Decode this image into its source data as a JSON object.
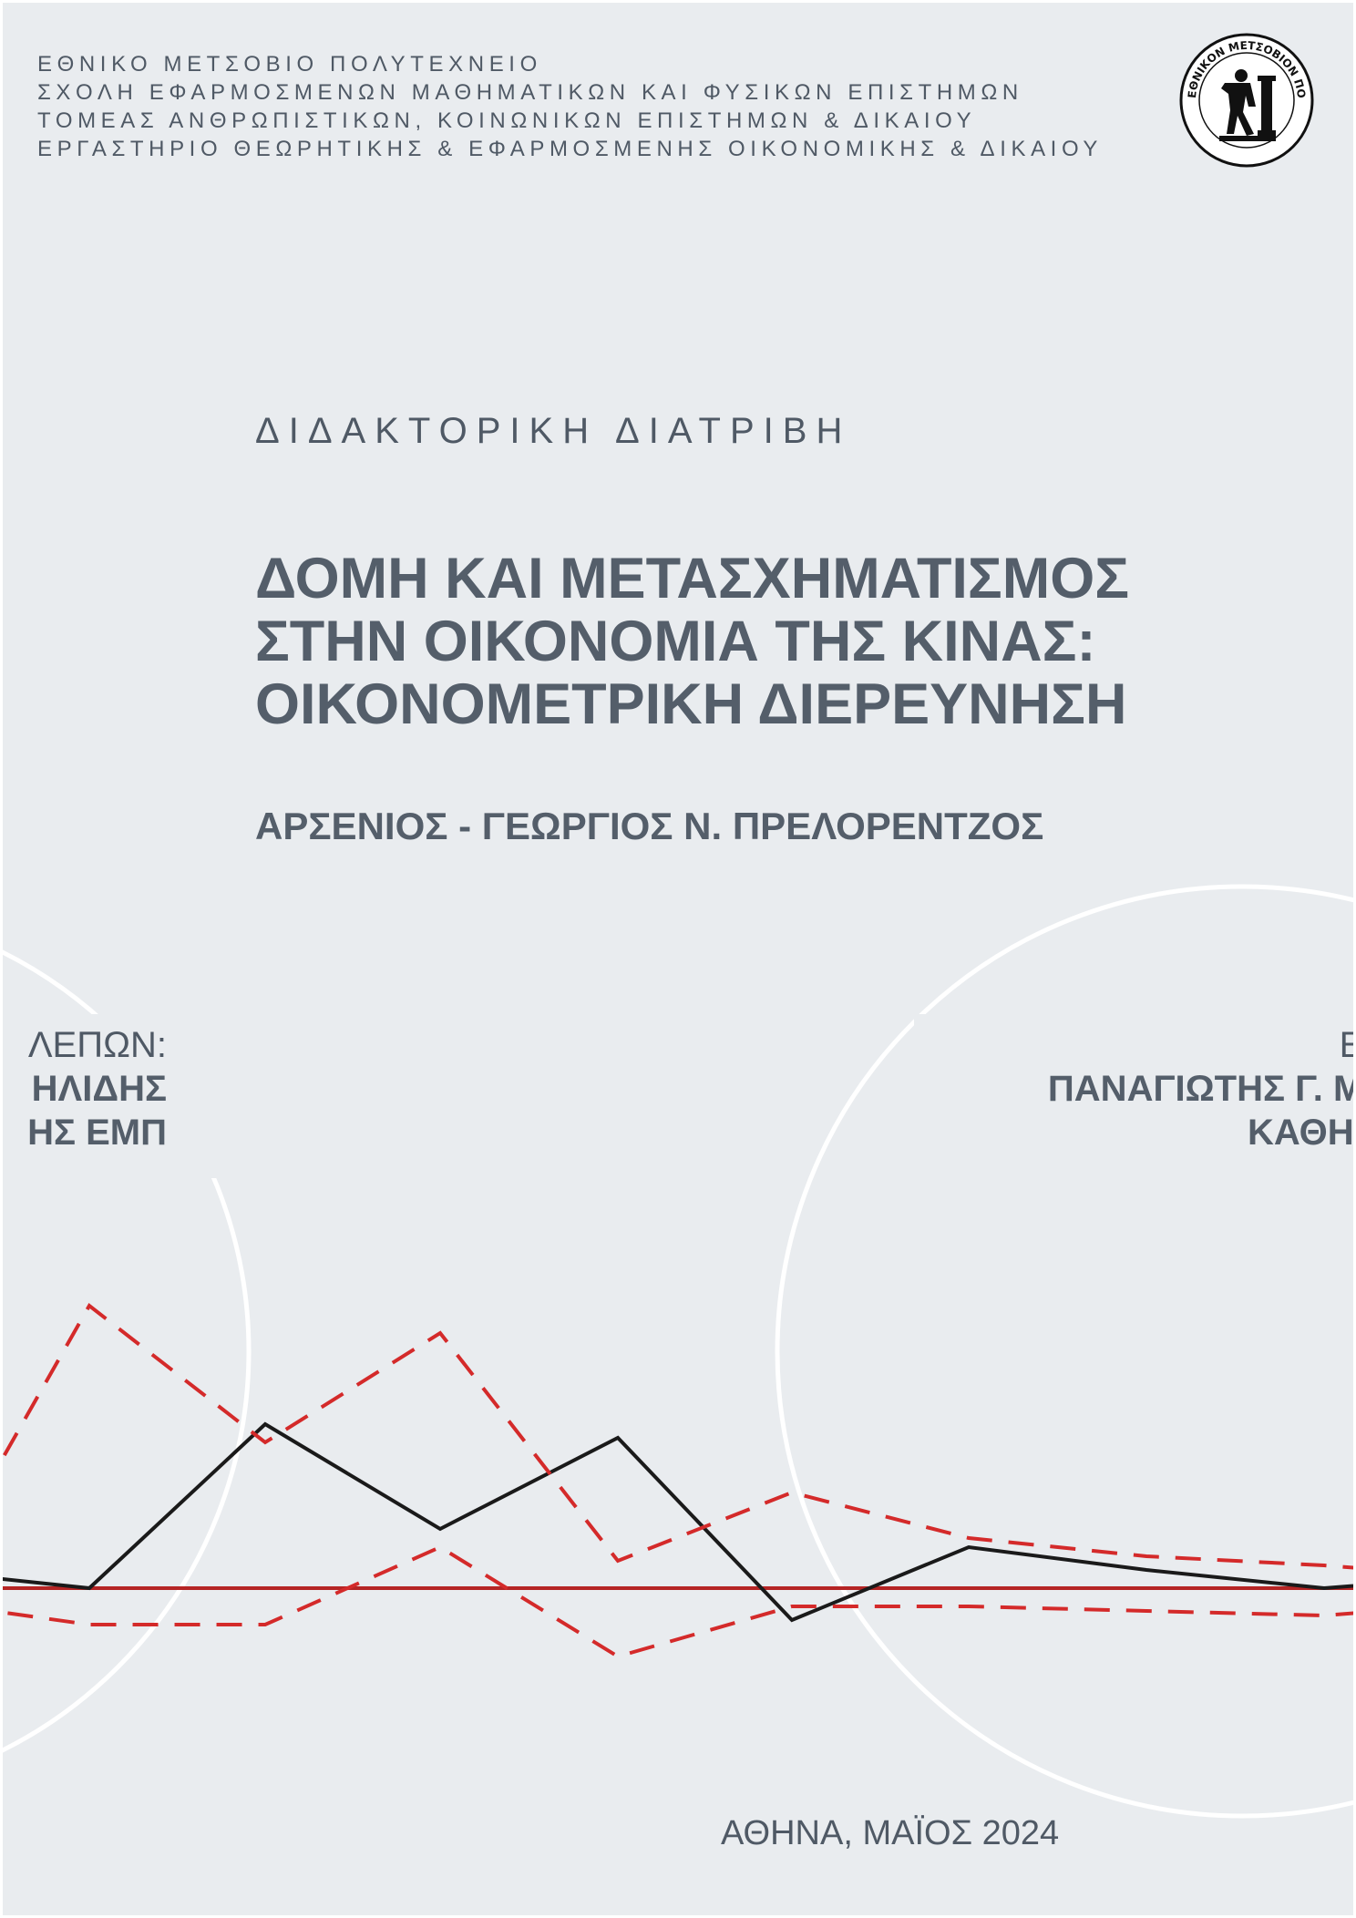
{
  "institution": {
    "lines": [
      "ΕΘΝΙΚΟ ΜΕΤΣΟΒΙΟ ΠΟΛΥΤΕΧΝΕΙΟ",
      "ΣΧΟΛΗ ΕΦΑΡΜΟΣΜΕΝΩΝ ΜΑΘΗΜΑΤΙΚΩΝ ΚΑΙ ΦΥΣΙΚΩΝ ΕΠΙΣΤΗΜΩΝ",
      "ΤΟΜΕΑΣ ΑΝΘΡΩΠΙΣΤΙΚΩΝ, ΚΟΙΝΩΝΙΚΩΝ ΕΠΙΣΤΗΜΩΝ & ΔΙΚΑΙΟΥ",
      "ΕΡΓΑΣΤΗΡΙΟ ΘΕΩΡΗΤΙΚΗΣ & ΕΦΑΡΜΟΣΜΕΝΗΣ ΟΙΚΟΝΟΜΙΚΗΣ & ΔΙΚΑΙΟΥ"
    ],
    "seal_text": "ΕΘΝΙΚΟΝ ΜΕΤΣΟΒΙΟΝ ΠΟΛΥΤΕΧΝΕΙΟΝ"
  },
  "document_type": "ΔΙΔΑΚΤΟΡΙΚΗ ΔΙΑΤΡΙΒΗ",
  "title_lines": [
    "ΔΟΜΗ ΚΑΙ ΜΕΤΑΣΧΗΜΑΤΙΣΜΟΣ",
    "ΣΤΗΝ ΟΙΚΟΝΟΜΙΑ ΤΗΣ ΚΙΝΑΣ:",
    "ΟΙΚΟΝΟΜΕΤΡΙΚΗ ΔΙΕΡΕΥΝΗΣΗ"
  ],
  "author": "ΑΡΣΕΝΙΟΣ - ΓΕΩΡΓΙΟΣ Ν. ΠΡΕΛΟΡΕΝΤΖΟΣ",
  "left_circle": {
    "label": "ΛΕΠΩΝ:",
    "name": "ΗΛΙΔΗΣ",
    "role": "ΗΣ ΕΜΠ"
  },
  "right_circle": {
    "label": "ΕΠΙΒ",
    "name": "ΠΑΝΑΓΙΩΤΗΣ Γ. ΜΙΧΑ",
    "role": "ΚΑΘΗΓΗΤ"
  },
  "place_date": "ΑΘΗΝΑ, ΜΑΪΟΣ 2024",
  "colors": {
    "background": "#e9ecef",
    "text": "#545e6a",
    "response_line": "#1a1a1a",
    "confidence_band": "#d42a2a",
    "zero_line": "#b52424",
    "circle": "#ffffff"
  },
  "chart_data": {
    "type": "line",
    "x": [
      0,
      1,
      2,
      3,
      4,
      5,
      6,
      7,
      8,
      9,
      10
    ],
    "series": [
      {
        "values": [
          0.4,
          0.3,
          0.0,
          3.6,
          1.3,
          3.3,
          -0.7,
          0.9,
          0.4,
          0.0,
          0.3
        ],
        "style": "solid"
      },
      {
        "values": [
          1.4,
          1.2,
          6.2,
          3.2,
          5.6,
          0.6,
          2.1,
          1.1,
          0.7,
          0.5,
          0.2
        ],
        "style": "dashed"
      },
      {
        "values": [
          -0.3,
          -0.4,
          -0.8,
          -0.8,
          0.9,
          -1.5,
          -0.4,
          -0.4,
          -0.5,
          -0.6,
          -0.3
        ],
        "style": "dashed"
      }
    ],
    "baseline": 0,
    "grid": false
  }
}
